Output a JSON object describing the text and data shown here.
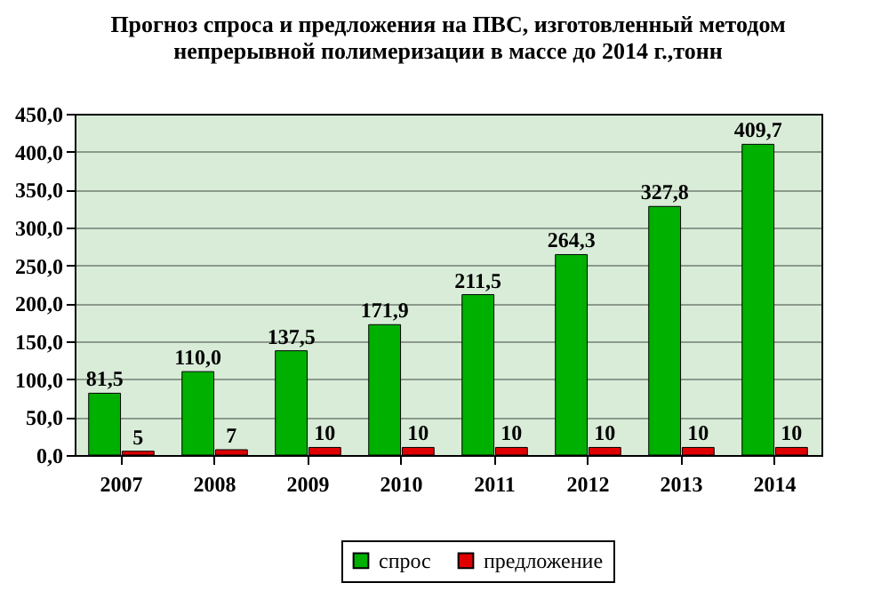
{
  "chart_data": {
    "type": "bar",
    "title": "Прогноз спроса и предложения на ПВС, изготовленный методом непрерывной полимеризации в массе до 2014 г.,тонн",
    "categories": [
      "2007",
      "2008",
      "2009",
      "2010",
      "2011",
      "2012",
      "2013",
      "2014"
    ],
    "series": [
      {
        "name": "спрос",
        "color": "#00b000",
        "values": [
          81.5,
          110.0,
          137.5,
          171.9,
          211.5,
          264.3,
          327.8,
          409.7
        ],
        "value_labels": [
          "81,5",
          "110,0",
          "137,5",
          "171,9",
          "211,5",
          "264,3",
          "327,8",
          "409,7"
        ]
      },
      {
        "name": "предложение",
        "color": "#e00000",
        "values": [
          5,
          7,
          10,
          10,
          10,
          10,
          10,
          10
        ],
        "value_labels": [
          "5",
          "7",
          "10",
          "10",
          "10",
          "10",
          "10",
          "10"
        ]
      }
    ],
    "ylim": [
      0,
      450
    ],
    "yticks": [
      {
        "value": 0,
        "label": "0,0"
      },
      {
        "value": 50,
        "label": "50,0"
      },
      {
        "value": 100,
        "label": "100,0"
      },
      {
        "value": 150,
        "label": "150,0"
      },
      {
        "value": 200,
        "label": "200,0"
      },
      {
        "value": 250,
        "label": "250,0"
      },
      {
        "value": 300,
        "label": "300,0"
      },
      {
        "value": 350,
        "label": "350,0"
      },
      {
        "value": 400,
        "label": "400,0"
      },
      {
        "value": 450,
        "label": "450,0"
      }
    ],
    "grid": "y",
    "legend": "bottom"
  }
}
